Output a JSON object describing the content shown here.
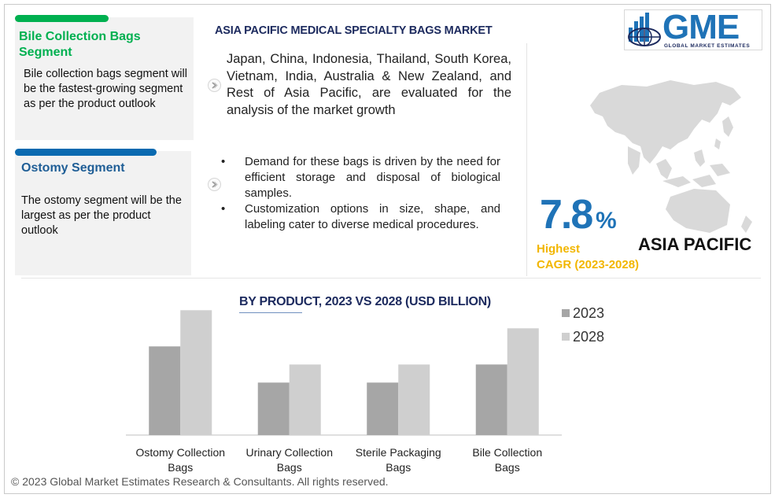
{
  "title": "ASIA PACIFIC MEDICAL SPECIALTY BAGS MARKET",
  "cards": [
    {
      "title": "Bile Collection Bags Segment",
      "text": "Bile collection bags segment will be the fastest-growing segment as per the product outlook",
      "color": "#00b050"
    },
    {
      "title": "Ostomy Segment",
      "text": "The ostomy segment will be the largest as per the product outlook",
      "color": "#0a6ab0"
    }
  ],
  "countries_text": "Japan, China, Indonesia, Thailand, South Korea, Vietnam, India, Australia & New Zealand, and Rest of Asia Pacific, are evaluated for the analysis of the market growth",
  "bullets": [
    "Demand for these bags is driven by the need for efficient storage and disposal of biological samples.",
    "Customization options in size, shape, and labeling cater to diverse medical procedures."
  ],
  "logo": {
    "text": "GME",
    "subtitle": "GLOBAL MARKET ESTIMATES"
  },
  "cagr": {
    "value": "7.8",
    "unit": "%",
    "label": "Highest\nCAGR (2023-2028)"
  },
  "region": "ASIA PACIFIC",
  "footer": "© 2023 Global Market Estimates Research & Consultants. All rights reserved.",
  "colors": {
    "green": "#00b050",
    "blue": "#1f73b7",
    "navy": "#1c2a5e",
    "gold": "#f2b600",
    "bar_2023": "#a6a6a6",
    "bar_2028": "#cfcfcf"
  },
  "chart_data": {
    "type": "bar",
    "title": "BY PRODUCT, 2023 VS 2028 (USD BILLION)",
    "categories": [
      "Ostomy Collection Bags",
      "Urinary Collection Bags",
      "Sterile Packaging Bags",
      "Bile Collection Bags"
    ],
    "series": [
      {
        "name": "2023",
        "values": [
          4.9,
          2.9,
          2.9,
          3.9
        ],
        "color": "#a6a6a6"
      },
      {
        "name": "2028",
        "values": [
          6.9,
          3.9,
          3.9,
          5.9
        ],
        "color": "#cfcfcf"
      }
    ],
    "ylim": [
      0,
      7
    ],
    "grid": false,
    "legend": "top-right",
    "xlabel": "",
    "ylabel": ""
  }
}
